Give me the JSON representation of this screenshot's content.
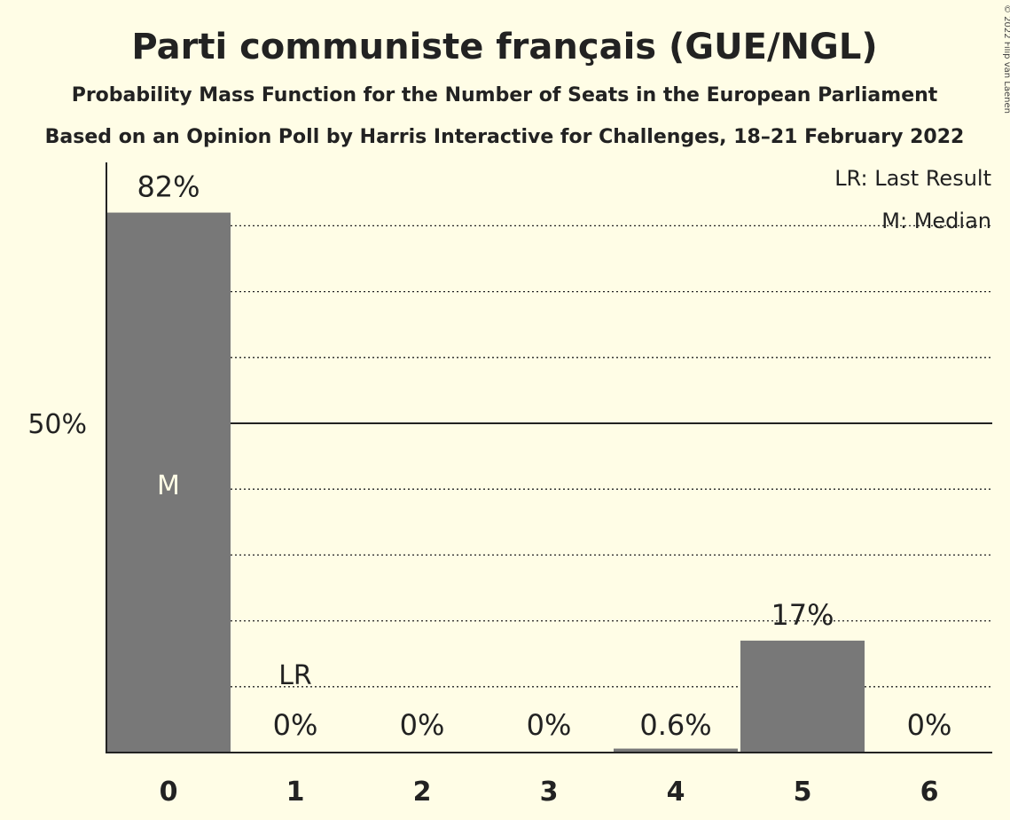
{
  "header": {
    "title": "Parti communiste français (GUE/NGL)",
    "subtitle1": "Probability Mass Function for the Number of Seats in the European Parliament",
    "subtitle2": "Based on an Opinion Poll by Harris Interactive for Challenges, 18–21 February 2022",
    "copyright": "© 2022 Filip van Laenen"
  },
  "legend": {
    "last_result": "LR: Last Result",
    "median": "M: Median"
  },
  "colors": {
    "bar": "#787878",
    "background": "#fffde6",
    "text": "#222222"
  },
  "chart_data": {
    "type": "bar",
    "categories": [
      "0",
      "1",
      "2",
      "3",
      "4",
      "5",
      "6"
    ],
    "values": [
      82,
      0,
      0,
      0,
      0.6,
      17,
      0
    ],
    "data_labels": [
      "82%",
      "0%",
      "0%",
      "0%",
      "0.6%",
      "17%",
      "0%"
    ],
    "title": "Parti communiste français (GUE/NGL)",
    "ylim": [
      0,
      90
    ],
    "yticks": [
      {
        "value": 50,
        "label": "50%"
      }
    ],
    "gridlines_dotted": [
      10,
      20,
      30,
      40,
      60,
      70,
      80
    ],
    "gridline_solid": 50,
    "median_index": 0,
    "median_marker": "M",
    "last_result_index": 1,
    "last_result_marker": "LR",
    "legend_position": "top-right",
    "grid": true
  }
}
